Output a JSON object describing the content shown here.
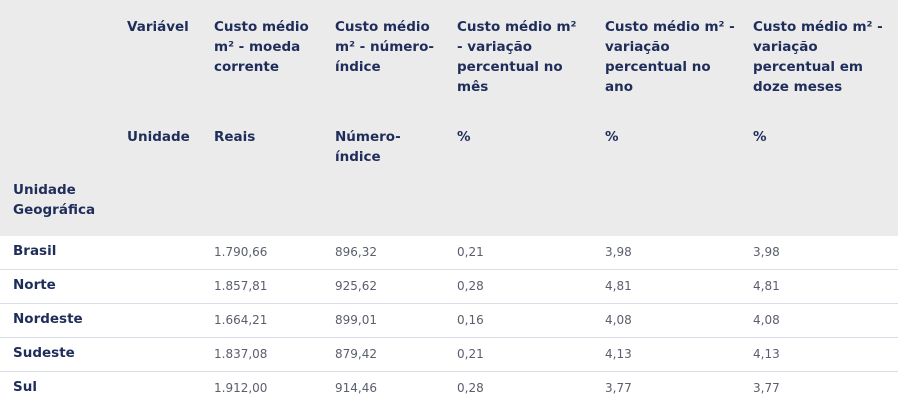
{
  "header": {
    "variavel_label": "Variável",
    "unidade_label": "Unidade",
    "unidade_geografica_label": "Unidade\nGeográfica",
    "columns": [
      {
        "title": "Custo médio m² - moeda corrente",
        "unit": "Reais"
      },
      {
        "title": "Custo médio m² - número-índice",
        "unit": "Número-índice"
      },
      {
        "title": "Custo médio m² - variação percentual no mês",
        "unit": "%"
      },
      {
        "title": "Custo médio m² - variação percentual no ano",
        "unit": "%"
      },
      {
        "title": "Custo médio m² - variação percentual em doze meses",
        "unit": "%"
      }
    ]
  },
  "rows": [
    {
      "region": "Brasil",
      "values": [
        "1.790,66",
        "896,32",
        "0,21",
        "3,98",
        "3,98"
      ]
    },
    {
      "region": "Norte",
      "values": [
        "1.857,81",
        "925,62",
        "0,28",
        "4,81",
        "4,81"
      ]
    },
    {
      "region": "Nordeste",
      "values": [
        "1.664,21",
        "899,01",
        "0,16",
        "4,08",
        "4,08"
      ]
    },
    {
      "region": "Sudeste",
      "values": [
        "1.837,08",
        "879,42",
        "0,21",
        "4,13",
        "4,13"
      ]
    },
    {
      "region": "Sul",
      "values": [
        "1.912,00",
        "914,46",
        "0,28",
        "3,77",
        "3,77"
      ]
    }
  ]
}
